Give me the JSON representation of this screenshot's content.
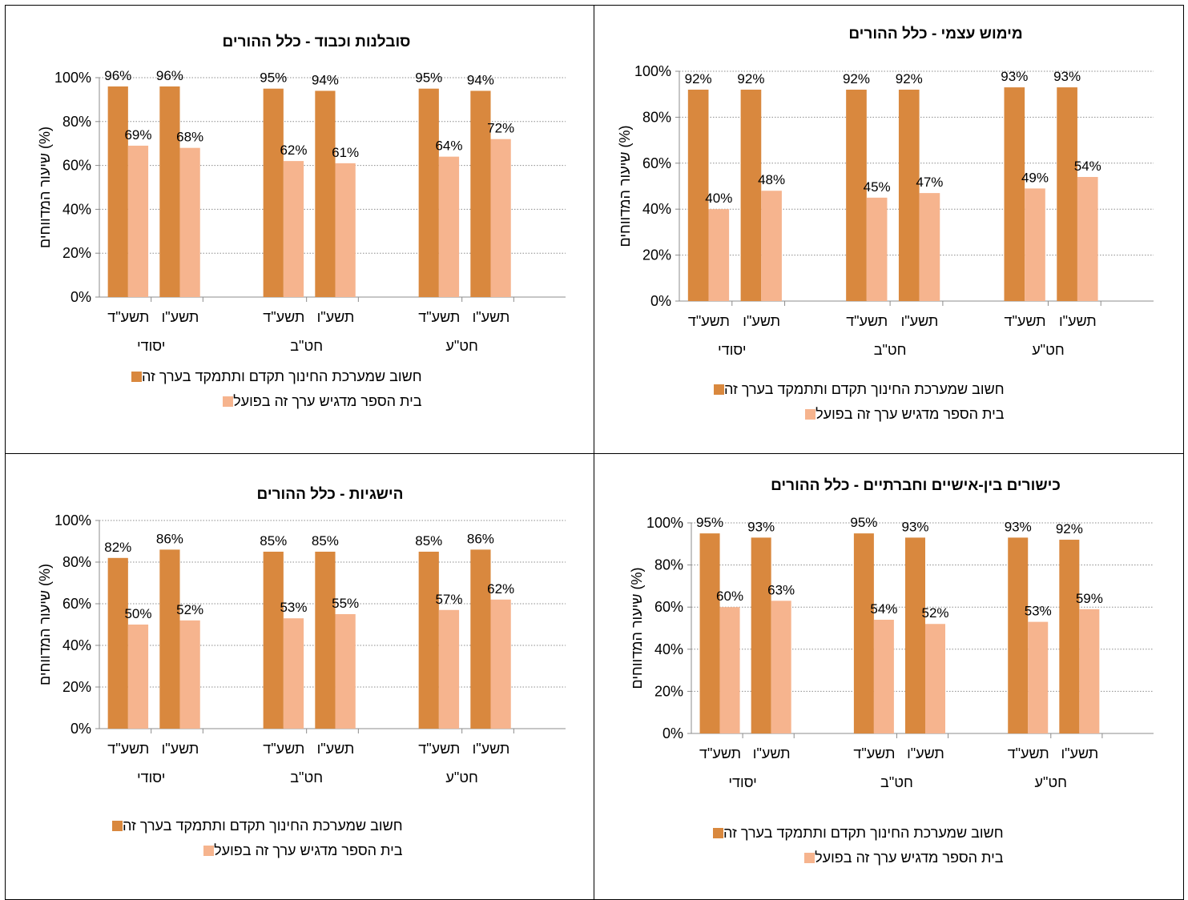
{
  "colors": {
    "important": "#D9883E",
    "actual": "#F6B48E",
    "grid": "#8C8C8C",
    "axis": "#8C8C8C"
  },
  "legend": {
    "important": "חשוב שמערכת החינוך תקדם ותתמקד בערך זה",
    "actual": "בית הספר מדגיש ערך זה בפועל"
  },
  "chart_data": [
    {
      "type": "bar",
      "title": "סובלנות וכבוד - כלל ההורים",
      "ylabel": "שיעור המדווחים (%)",
      "ylim": [
        0,
        100
      ],
      "yticks": [
        "0%",
        "20%",
        "40%",
        "60%",
        "80%",
        "100%"
      ],
      "groups": [
        "יסודי",
        "חט\"ב",
        "חט\"ע"
      ],
      "categories": [
        "תשע\"ד",
        "תשע\"ו"
      ],
      "series": [
        {
          "name": "חשוב שמערכת החינוך תקדם ותתמקד בערך זה",
          "values": [
            [
              96,
              96
            ],
            [
              95,
              94
            ],
            [
              95,
              94
            ]
          ]
        },
        {
          "name": "בית הספר מדגיש ערך זה בפועל",
          "values": [
            [
              69,
              68
            ],
            [
              62,
              61
            ],
            [
              64,
              72
            ]
          ]
        }
      ],
      "grid": true,
      "legend": "bottom"
    },
    {
      "type": "bar",
      "title": "מימוש עצמי - כלל ההורים",
      "ylabel": "שיעור המדווחים (%)",
      "ylim": [
        0,
        100
      ],
      "yticks": [
        "0%",
        "20%",
        "40%",
        "60%",
        "80%",
        "100%"
      ],
      "groups": [
        "יסודי",
        "חט\"ב",
        "חט\"ע"
      ],
      "categories": [
        "תשע\"ד",
        "תשע\"ו"
      ],
      "series": [
        {
          "name": "חשוב שמערכת החינוך תקדם ותתמקד בערך זה",
          "values": [
            [
              92,
              92
            ],
            [
              92,
              92
            ],
            [
              93,
              93
            ]
          ]
        },
        {
          "name": "בית הספר מדגיש ערך זה בפועל",
          "values": [
            [
              40,
              48
            ],
            [
              45,
              47
            ],
            [
              49,
              54
            ]
          ]
        }
      ],
      "grid": true,
      "legend": "bottom"
    },
    {
      "type": "bar",
      "title": "הישגיות - כלל ההורים",
      "ylabel": "שיעור המדווחים (%)",
      "ylim": [
        0,
        100
      ],
      "yticks": [
        "0%",
        "20%",
        "40%",
        "60%",
        "80%",
        "100%"
      ],
      "groups": [
        "יסודי",
        "חט\"ב",
        "חט\"ע"
      ],
      "categories": [
        "תשע\"ד",
        "תשע\"ו"
      ],
      "series": [
        {
          "name": "חשוב שמערכת החינוך תקדם ותתמקד בערך זה",
          "values": [
            [
              82,
              86
            ],
            [
              85,
              85
            ],
            [
              85,
              86
            ]
          ]
        },
        {
          "name": "בית הספר מדגיש ערך זה בפועל",
          "values": [
            [
              50,
              52
            ],
            [
              53,
              55
            ],
            [
              57,
              62
            ]
          ]
        }
      ],
      "grid": true,
      "legend": "bottom"
    },
    {
      "type": "bar",
      "title": "כישורים בין-אישיים וחברתיים - כלל ההורים",
      "ylabel": "שיעור המדווחים (%)",
      "ylim": [
        0,
        100
      ],
      "yticks": [
        "0%",
        "20%",
        "40%",
        "60%",
        "80%",
        "100%"
      ],
      "groups": [
        "יסודי",
        "חט\"ב",
        "חט\"ע"
      ],
      "categories": [
        "תשע\"ד",
        "תשע\"ו"
      ],
      "series": [
        {
          "name": "חשוב שמערכת החינוך תקדם ותתמקד בערך זה",
          "values": [
            [
              95,
              93
            ],
            [
              95,
              93
            ],
            [
              93,
              92
            ]
          ]
        },
        {
          "name": "בית הספר מדגיש ערך זה בפועל",
          "values": [
            [
              60,
              63
            ],
            [
              54,
              52
            ],
            [
              53,
              59
            ]
          ]
        }
      ],
      "grid": true,
      "legend": "bottom"
    }
  ]
}
